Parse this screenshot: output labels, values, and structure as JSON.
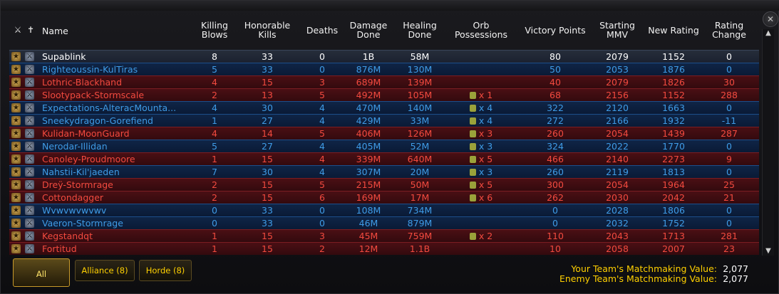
{
  "headers": {
    "name": "Name",
    "killing_blows": [
      "Killing",
      "Blows"
    ],
    "honorable_kills": [
      "Honorable",
      "Kills"
    ],
    "deaths": "Deaths",
    "damage_done": [
      "Damage",
      "Done"
    ],
    "healing_done": [
      "Healing",
      "Done"
    ],
    "orb_possessions": [
      "Orb",
      "Possessions"
    ],
    "victory_points": "Victory Points",
    "starting_mmv": [
      "Starting",
      "MMV"
    ],
    "new_rating": "New Rating",
    "rating_change": [
      "Rating",
      "Change"
    ]
  },
  "rows": [
    {
      "faction": "neutral",
      "name": "Supablink",
      "kb": "8",
      "hk": "33",
      "deaths": "0",
      "dmg": "1B",
      "heal": "58M",
      "orb": "",
      "vp": "80",
      "mmv": "2079",
      "rating": "1152",
      "change": "0"
    },
    {
      "faction": "alliance",
      "name": "Righteoussin-KulTiras",
      "kb": "5",
      "hk": "33",
      "deaths": "0",
      "dmg": "876M",
      "heal": "130M",
      "orb": "",
      "vp": "50",
      "mmv": "2053",
      "rating": "1876",
      "change": "0"
    },
    {
      "faction": "horde",
      "name": "Lothric-Blackhand",
      "kb": "4",
      "hk": "15",
      "deaths": "3",
      "dmg": "689M",
      "heal": "139M",
      "orb": "",
      "vp": "40",
      "mmv": "2079",
      "rating": "1826",
      "change": "30"
    },
    {
      "faction": "horde",
      "name": "Slootypack-Stormscale",
      "kb": "2",
      "hk": "13",
      "deaths": "5",
      "dmg": "492M",
      "heal": "105M",
      "orb": "x 1",
      "vp": "68",
      "mmv": "2156",
      "rating": "1152",
      "change": "288"
    },
    {
      "faction": "alliance",
      "name": "Expectations-AlteracMounta...",
      "kb": "4",
      "hk": "30",
      "deaths": "4",
      "dmg": "470M",
      "heal": "140M",
      "orb": "x 4",
      "vp": "322",
      "mmv": "2120",
      "rating": "1663",
      "change": "0"
    },
    {
      "faction": "alliance",
      "name": "Sneekydragon-Gorefiend",
      "kb": "1",
      "hk": "27",
      "deaths": "4",
      "dmg": "429M",
      "heal": "33M",
      "orb": "x 4",
      "vp": "272",
      "mmv": "2166",
      "rating": "1932",
      "change": "-11"
    },
    {
      "faction": "horde",
      "name": "Kulidan-MoonGuard",
      "kb": "4",
      "hk": "14",
      "deaths": "5",
      "dmg": "406M",
      "heal": "126M",
      "orb": "x 3",
      "vp": "260",
      "mmv": "2054",
      "rating": "1439",
      "change": "287"
    },
    {
      "faction": "alliance",
      "name": "Nerodar-Illidan",
      "kb": "5",
      "hk": "27",
      "deaths": "4",
      "dmg": "405M",
      "heal": "52M",
      "orb": "x 3",
      "vp": "324",
      "mmv": "2022",
      "rating": "1770",
      "change": "0"
    },
    {
      "faction": "horde",
      "name": "Canoley-Proudmoore",
      "kb": "1",
      "hk": "15",
      "deaths": "4",
      "dmg": "339M",
      "heal": "640M",
      "orb": "x 5",
      "vp": "466",
      "mmv": "2140",
      "rating": "2273",
      "change": "9"
    },
    {
      "faction": "alliance",
      "name": "Nahstii-Kil'jaeden",
      "kb": "7",
      "hk": "30",
      "deaths": "4",
      "dmg": "307M",
      "heal": "20M",
      "orb": "x 3",
      "vp": "260",
      "mmv": "2119",
      "rating": "1813",
      "change": "0"
    },
    {
      "faction": "horde",
      "name": "Dreÿ-Stormrage",
      "kb": "2",
      "hk": "15",
      "deaths": "5",
      "dmg": "215M",
      "heal": "50M",
      "orb": "x 5",
      "vp": "300",
      "mmv": "2054",
      "rating": "1964",
      "change": "25"
    },
    {
      "faction": "horde",
      "name": "Cottondagger",
      "kb": "2",
      "hk": "15",
      "deaths": "6",
      "dmg": "169M",
      "heal": "17M",
      "orb": "x 6",
      "vp": "262",
      "mmv": "2030",
      "rating": "2042",
      "change": "21"
    },
    {
      "faction": "alliance",
      "name": "Wvwvwvwvwv",
      "kb": "0",
      "hk": "33",
      "deaths": "0",
      "dmg": "108M",
      "heal": "734M",
      "orb": "",
      "vp": "0",
      "mmv": "2028",
      "rating": "1806",
      "change": "0"
    },
    {
      "faction": "alliance",
      "name": "Vaeron-Stormrage",
      "kb": "0",
      "hk": "33",
      "deaths": "0",
      "dmg": "46M",
      "heal": "879M",
      "orb": "",
      "vp": "0",
      "mmv": "2032",
      "rating": "1752",
      "change": "0"
    },
    {
      "faction": "horde",
      "name": "Kegstandqt",
      "kb": "1",
      "hk": "15",
      "deaths": "3",
      "dmg": "45M",
      "heal": "759M",
      "orb": "x 2",
      "vp": "110",
      "mmv": "2043",
      "rating": "1713",
      "change": "281"
    },
    {
      "faction": "horde",
      "name": "Fortitud",
      "kb": "1",
      "hk": "15",
      "deaths": "2",
      "dmg": "12M",
      "heal": "1.1B",
      "orb": "",
      "vp": "10",
      "mmv": "2058",
      "rating": "2007",
      "change": "23"
    }
  ],
  "tabs": [
    {
      "label": "All",
      "active": true
    },
    {
      "label": "Alliance (8)",
      "active": false
    },
    {
      "label": "Horde (8)",
      "active": false
    }
  ],
  "mmv": {
    "your_label": "Your Team's Matchmaking Value:",
    "your_value": "2,077",
    "enemy_label": "Enemy Team's Matchmaking Value:",
    "enemy_value": "2,077"
  },
  "colors": {
    "alliance": "#3f9be6",
    "horde": "#f24a3f",
    "neutral": "#ffffff",
    "gold": "#ffd000"
  },
  "icons": {
    "close": "close-icon",
    "scroll_up": "scroll-up-arrow-icon",
    "scroll_down": "scroll-down-arrow-icon"
  }
}
